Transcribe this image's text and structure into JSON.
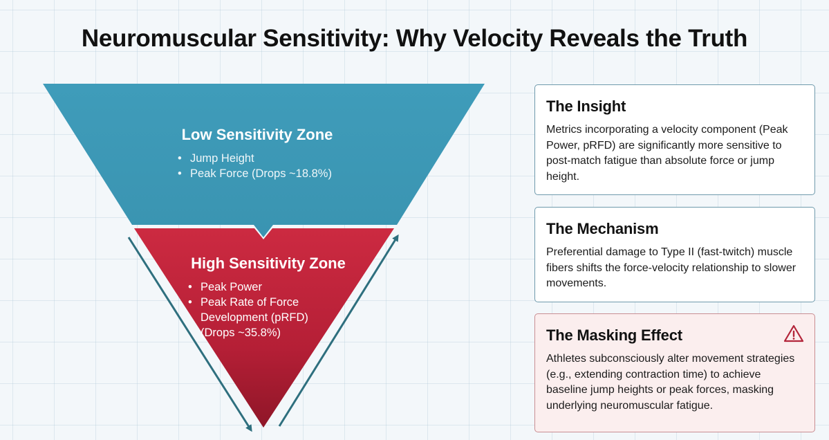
{
  "title": "Neuromuscular Sensitivity: Why Velocity Reveals the Truth",
  "funnel": {
    "low_zone": {
      "title": "Low Sensitivity Zone",
      "items": [
        "Jump Height",
        "Peak Force (Drops ~18.8%)"
      ],
      "color": "#3e9bb8"
    },
    "high_zone": {
      "title": "High Sensitivity Zone",
      "items": [
        "Peak Power",
        "Peak Rate of Force Development (pRFD) (Drops ~35.8%)"
      ],
      "color": "#c2273d"
    }
  },
  "cards": {
    "insight": {
      "title": "The Insight",
      "body": "Metrics incorporating a velocity component (Peak Power, pRFD) are significantly more sensitive to post-match fatigue than absolute force or jump height."
    },
    "mechanism": {
      "title": "The Mechanism",
      "body": "Preferential damage to Type II (fast-twitch) muscle fibers shifts the force-velocity relationship to slower movements."
    },
    "masking": {
      "title": "The Masking Effect",
      "body": "Athletes subconsciously alter movement strategies (e.g., extending contraction time) to achieve baseline jump heights or peak forces, masking underlying neuromuscular fatigue.",
      "icon": "warning-icon"
    }
  }
}
